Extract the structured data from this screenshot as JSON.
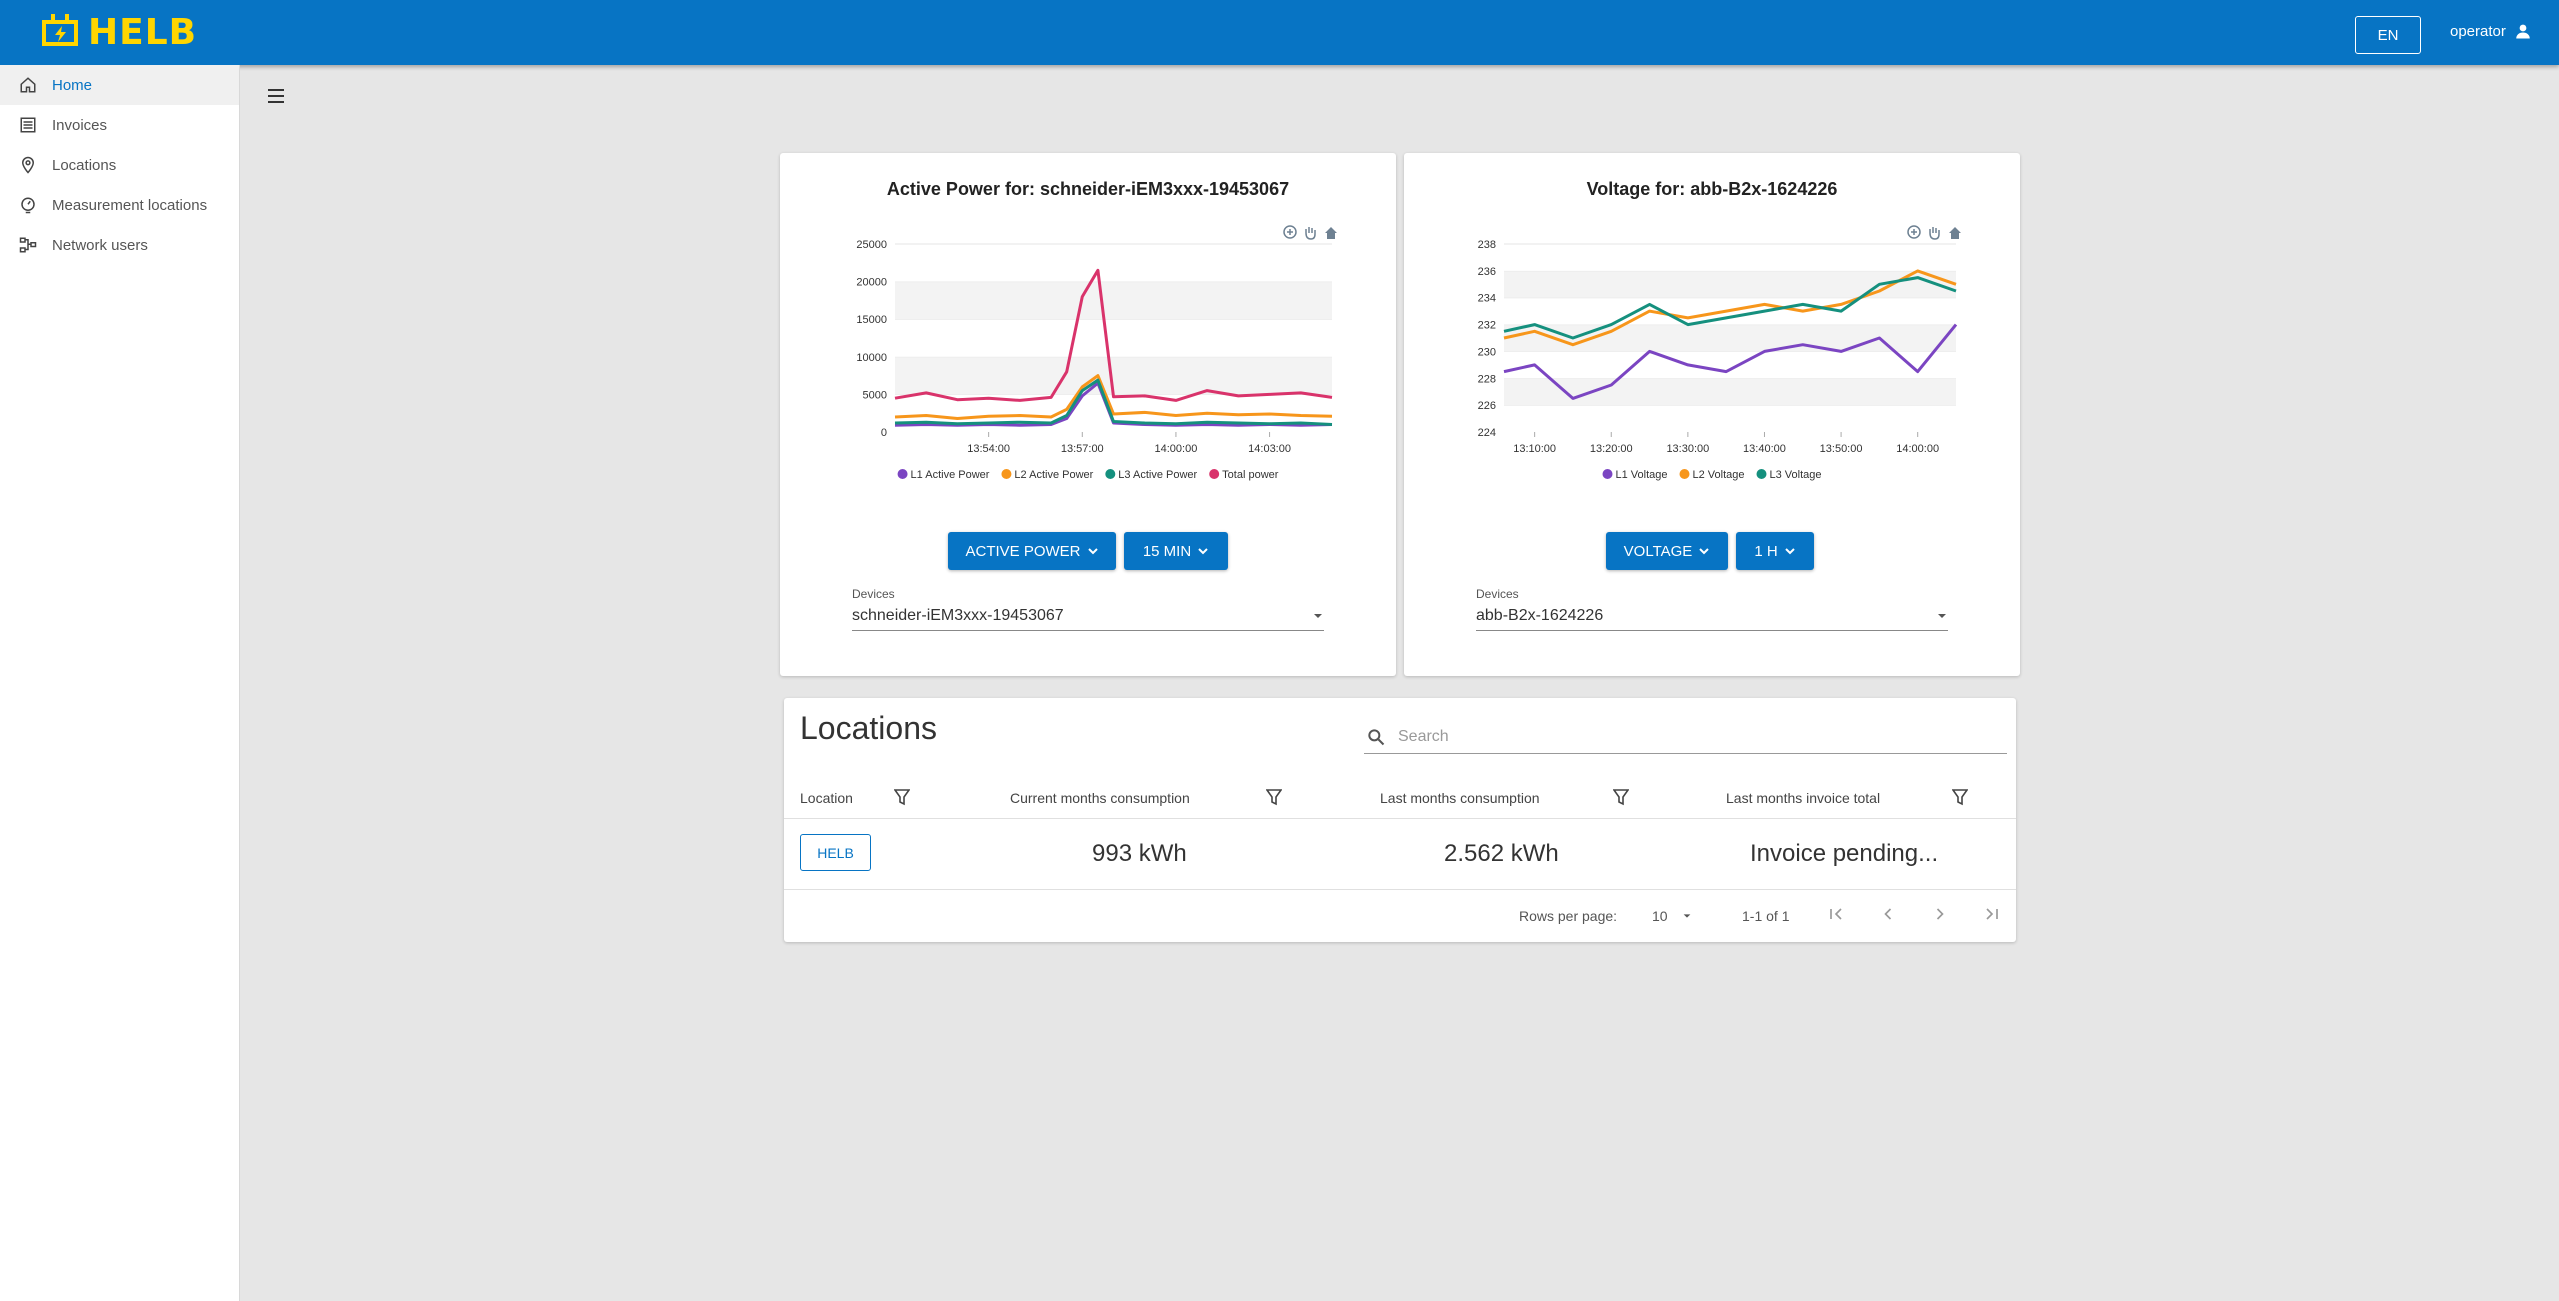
{
  "app": {
    "name": "HELB"
  },
  "header": {
    "language": "EN",
    "user": "operator"
  },
  "sidebar": {
    "items": [
      {
        "label": "Home",
        "icon": "home-icon",
        "active": true
      },
      {
        "label": "Invoices",
        "icon": "list-icon",
        "active": false
      },
      {
        "label": "Locations",
        "icon": "pin-icon",
        "active": false
      },
      {
        "label": "Measurement locations",
        "icon": "meter-icon",
        "active": false
      },
      {
        "label": "Network users",
        "icon": "network-icon",
        "active": false
      }
    ]
  },
  "colors": {
    "accent": "#0774c4",
    "brand_yellow": "#ffd500",
    "l1": "#7b45c2",
    "l2": "#f7961b",
    "l3": "#15907e",
    "total": "#d9336b"
  },
  "charts": {
    "power": {
      "title": "Active Power for: schneider-iEM3xxx-19453067",
      "metric_button": "ACTIVE POWER",
      "range_button": "15 MIN",
      "devices_label": "Devices",
      "device": "schneider-iEM3xxx-19453067"
    },
    "voltage": {
      "title": "Voltage for: abb-B2x-1624226",
      "metric_button": "VOLTAGE",
      "range_button": "1 H",
      "devices_label": "Devices",
      "device": "abb-B2x-1624226"
    }
  },
  "chart_data": [
    {
      "type": "line",
      "title": "Active Power for: schneider-iEM3xxx-19453067",
      "ylim": [
        0,
        25000
      ],
      "yticks": [
        "0",
        "5000",
        "10000",
        "15000",
        "20000",
        "25000"
      ],
      "xticks": [
        "13:54:00",
        "13:57:00",
        "14:00:00",
        "14:03:00"
      ],
      "x": [
        "13:51:00",
        "13:52:00",
        "13:53:00",
        "13:54:00",
        "13:55:00",
        "13:56:00",
        "13:56:30",
        "13:57:00",
        "13:57:30",
        "13:58:00",
        "13:59:00",
        "14:00:00",
        "14:01:00",
        "14:02:00",
        "14:03:00",
        "14:04:00",
        "14:05:00"
      ],
      "series": [
        {
          "name": "L1 Active Power",
          "values": [
            900,
            1000,
            900,
            1000,
            900,
            1000,
            1800,
            4800,
            6500,
            1200,
            1000,
            900,
            1000,
            900,
            1000,
            900,
            1000
          ]
        },
        {
          "name": "L2 Active Power",
          "values": [
            2000,
            2200,
            1800,
            2100,
            2200,
            2000,
            3000,
            6000,
            7500,
            2400,
            2600,
            2200,
            2500,
            2300,
            2400,
            2200,
            2100
          ]
        },
        {
          "name": "L3 Active Power",
          "values": [
            1200,
            1300,
            1100,
            1200,
            1300,
            1200,
            2200,
            5500,
            6900,
            1400,
            1200,
            1100,
            1300,
            1200,
            1100,
            1200,
            1000
          ]
        },
        {
          "name": "Total power",
          "values": [
            4500,
            5200,
            4300,
            4500,
            4200,
            4600,
            8000,
            18000,
            21500,
            4700,
            4800,
            4200,
            5500,
            4800,
            5000,
            5200,
            4600
          ]
        }
      ]
    },
    {
      "type": "line",
      "title": "Voltage for: abb-B2x-1624226",
      "ylim": [
        224,
        238
      ],
      "yticks": [
        "224",
        "226",
        "228",
        "230",
        "232",
        "234",
        "236",
        "238"
      ],
      "xticks": [
        "13:10:00",
        "13:20:00",
        "13:30:00",
        "13:40:00",
        "13:50:00",
        "14:00:00"
      ],
      "x": [
        "13:06:00",
        "13:10:00",
        "13:15:00",
        "13:20:00",
        "13:25:00",
        "13:30:00",
        "13:35:00",
        "13:40:00",
        "13:45:00",
        "13:50:00",
        "13:55:00",
        "14:00:00",
        "14:05:00"
      ],
      "series": [
        {
          "name": "L1 Voltage",
          "values": [
            228.5,
            229.0,
            226.5,
            227.5,
            230.0,
            229.0,
            228.5,
            230.0,
            230.5,
            230.0,
            231.0,
            228.5,
            232.0
          ]
        },
        {
          "name": "L2 Voltage",
          "values": [
            231.0,
            231.5,
            230.5,
            231.5,
            233.0,
            232.5,
            233.0,
            233.5,
            233.0,
            233.5,
            234.5,
            236.0,
            235.0
          ]
        },
        {
          "name": "L3 Voltage",
          "values": [
            231.5,
            232.0,
            231.0,
            232.0,
            233.5,
            232.0,
            232.5,
            233.0,
            233.5,
            233.0,
            235.0,
            235.5,
            234.5
          ]
        }
      ]
    }
  ],
  "locations": {
    "title": "Locations",
    "search_placeholder": "Search",
    "columns": [
      "Location",
      "Current months consumption",
      "Last months consumption",
      "Last months invoice total"
    ],
    "rows": [
      {
        "location": "HELB",
        "current": "993 kWh",
        "last": "2.562 kWh",
        "invoice": "Invoice pending..."
      }
    ],
    "pagination": {
      "rows_per_page_label": "Rows per page:",
      "rows_per_page": "10",
      "range": "1-1 of 1"
    }
  }
}
